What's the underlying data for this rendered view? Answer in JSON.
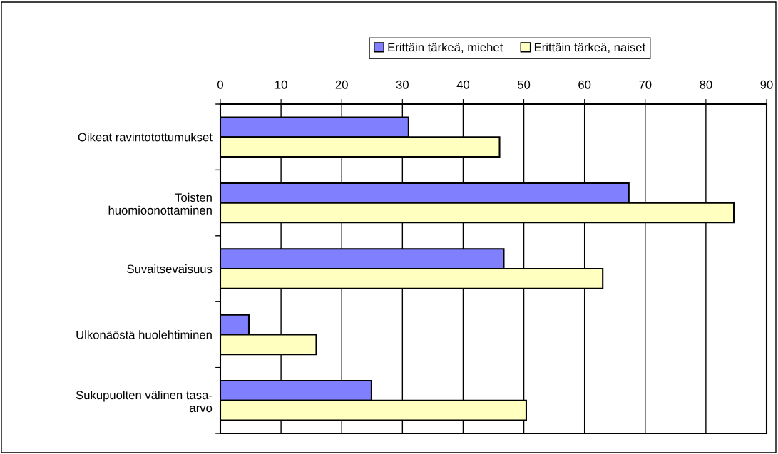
{
  "chart_data": {
    "type": "bar",
    "orientation": "horizontal",
    "categories": [
      "Oikeat ravintotottumukset",
      "Toisten\nhuomioonottaminen",
      "Suvaitsevaisuus",
      "Ulkonäöstä huolehtiminen",
      "Sukupuolten välinen tasa-\narvo"
    ],
    "series": [
      {
        "name": "Erittäin tärkeä, miehet",
        "color": "#8080ff",
        "values": [
          31.0,
          67.3,
          46.7,
          4.7,
          24.9
        ]
      },
      {
        "name": "Erittäin tärkeä, naiset",
        "color": "#ffffc0",
        "values": [
          46.0,
          84.6,
          63.0,
          15.8,
          50.4
        ]
      }
    ],
    "xlim": [
      0,
      90
    ],
    "xticks": [
      0,
      10,
      20,
      30,
      40,
      50,
      60,
      70,
      80,
      90
    ],
    "grid": "x",
    "legend": "top"
  }
}
